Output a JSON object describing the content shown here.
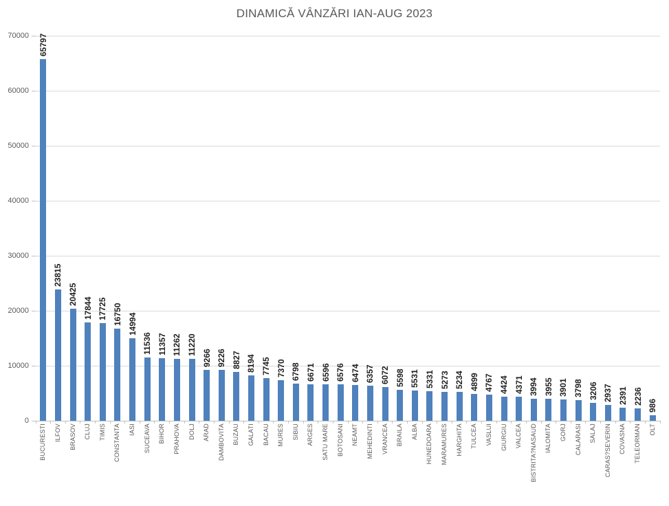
{
  "title": "DINAMICĂ VÂNZĂRI IAN-AUG 2023",
  "chart_data": {
    "type": "bar",
    "title": "DINAMICĂ VÂNZĂRI IAN-AUG 2023",
    "categories": [
      "BUCURESTI",
      "ILFOV",
      "BRASOV",
      "CLUJ",
      "TIMIS",
      "CONSTANTA",
      "IASI",
      "SUCEAVA",
      "BIHOR",
      "PRAHOVA",
      "DOLJ",
      "ARAD",
      "DAMBOVITA",
      "BUZAU",
      "GALATI",
      "BACAU",
      "MURES",
      "SIBIU",
      "ARGES",
      "SATU MARE",
      "BOTOSANI",
      "NEAMT",
      "MEHEDINTI",
      "VRANCEA",
      "BRAILA",
      "ALBA",
      "HUNEDOARA",
      "MARAMURES",
      "HARGHITA",
      "TULCEA",
      "VASLUI",
      "GIURGIU",
      "VALCEA",
      "BISTRITA?NASAUD",
      "IALOMITA",
      "GORJ",
      "CALARASI",
      "SALAJ",
      "CARAS?SEVERIN",
      "COVASNA",
      "TELEORMAN",
      "OLT"
    ],
    "values": [
      65797,
      23815,
      20425,
      17844,
      17725,
      16750,
      14994,
      11536,
      11357,
      11262,
      11220,
      9266,
      9226,
      8827,
      8194,
      7745,
      7370,
      6798,
      6671,
      6596,
      6576,
      6474,
      6357,
      6072,
      5598,
      5531,
      5331,
      5273,
      5234,
      4899,
      4767,
      4424,
      4371,
      3994,
      3955,
      3901,
      3798,
      3206,
      2937,
      2391,
      2236,
      986
    ],
    "xlabel": "",
    "ylabel": "",
    "ylim": [
      0,
      70000
    ],
    "yticks": [
      0,
      10000,
      20000,
      30000,
      40000,
      50000,
      60000,
      70000
    ],
    "grid": "horizontal",
    "legend": "none",
    "value_labels": "rotated vertical, bold, above bars",
    "category_labels": "rotated vertical below axis",
    "colors": {
      "bar": "#4f81bd",
      "title_text": "#595959",
      "axis_text": "#595959",
      "value_label_text": "#1f1f1f",
      "gridline": "#d9d9d9",
      "axis_line": "#bfbfbf",
      "background": "#ffffff"
    }
  }
}
